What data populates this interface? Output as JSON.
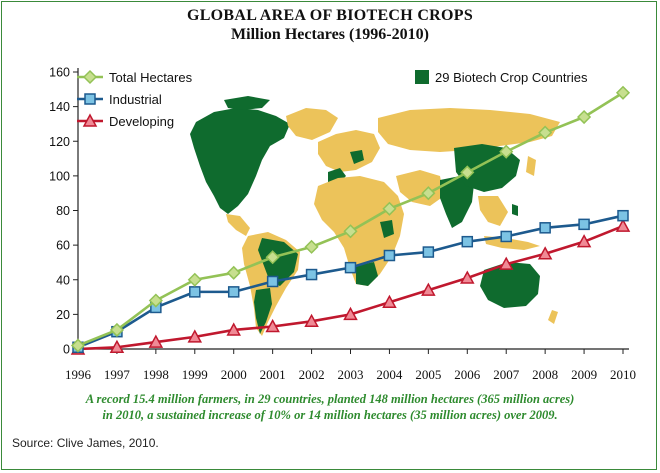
{
  "title_line1": "GLOBAL AREA OF BIOTECH CROPS",
  "title_line2": "Million Hectares (1996-2010)",
  "caption_line1": "A record 15.4 million farmers, in 29 countries, planted 148 million hectares (365 million acres)",
  "caption_line2": "in 2010, a sustained increase of 10% or 14 million hectares (35 million acres) over 2009.",
  "source": "Source: Clive James, 2010.",
  "map_legend": "29 Biotech Crop Countries",
  "colors": {
    "total": "#93c256",
    "industrial": "#1d5a8e",
    "developing": "#c0182e",
    "biotech_countries": "#0f6b2e",
    "other_countries": "#ecc35a"
  },
  "chart_data": {
    "type": "line",
    "x": [
      1996,
      1997,
      1998,
      1999,
      2000,
      2001,
      2002,
      2003,
      2004,
      2005,
      2006,
      2007,
      2008,
      2009,
      2010
    ],
    "ylim": [
      0,
      160
    ],
    "yticks": [
      0,
      20,
      40,
      60,
      80,
      100,
      120,
      140,
      160
    ],
    "legend_position": "top-left",
    "series": [
      {
        "name": "Total Hectares",
        "marker": "diamond",
        "values": [
          2,
          11,
          28,
          40,
          44,
          53,
          59,
          68,
          81,
          90,
          102,
          114,
          125,
          134,
          148
        ]
      },
      {
        "name": "Industrial",
        "marker": "square",
        "values": [
          1,
          10,
          24,
          33,
          33,
          39,
          43,
          47,
          54,
          56,
          62,
          65,
          70,
          72,
          77
        ]
      },
      {
        "name": "Developing",
        "marker": "triangle",
        "values": [
          0,
          1,
          4,
          7,
          11,
          13,
          16,
          20,
          27,
          34,
          41,
          49,
          55,
          62,
          71
        ]
      }
    ]
  }
}
